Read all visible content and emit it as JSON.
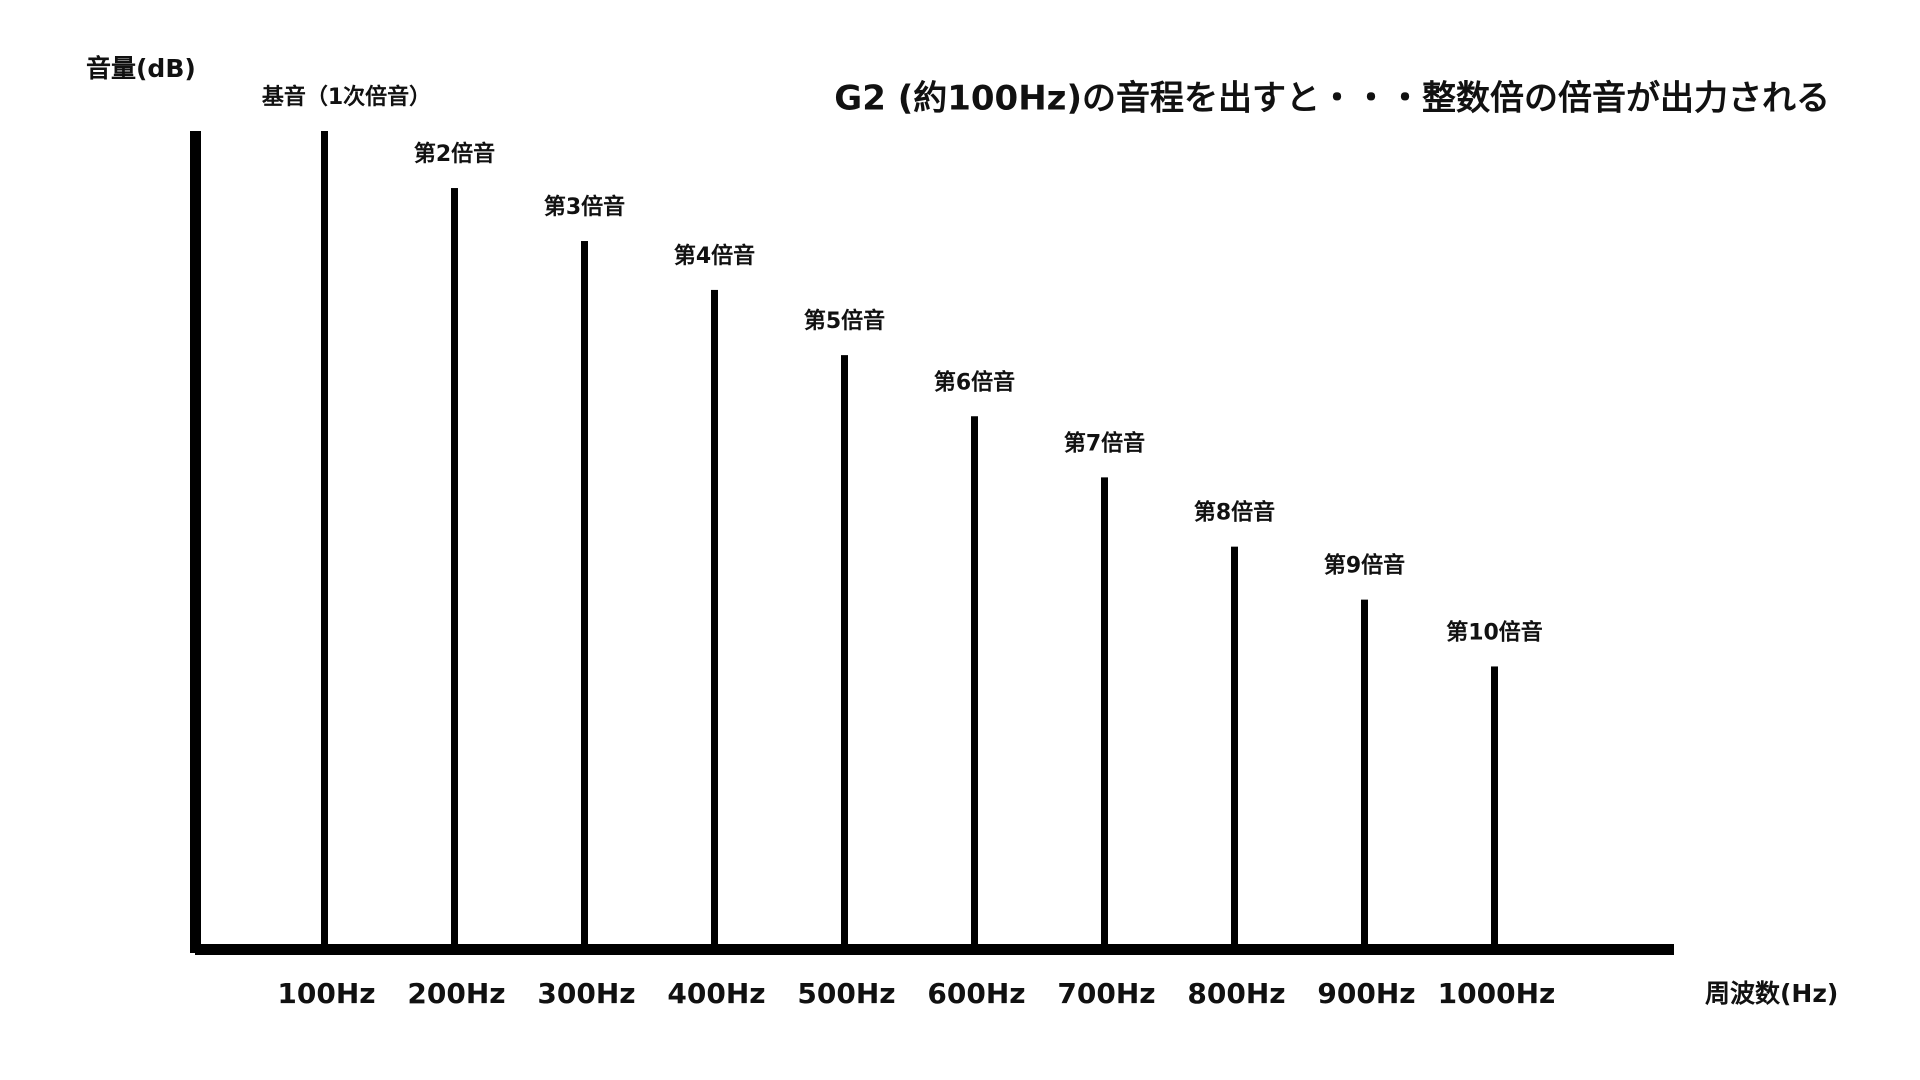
{
  "chart_data": {
    "type": "bar",
    "title": "G2 (約100Hz)の音程を出すと・・・整数倍の倍音が出力される",
    "y_label": "音量(dB)",
    "x_label": "周波数(Hz)",
    "categories": [
      "100Hz",
      "200Hz",
      "300Hz",
      "400Hz",
      "500Hz",
      "600Hz",
      "700Hz",
      "800Hz",
      "900Hz",
      "1000Hz"
    ],
    "bar_labels": [
      "基音（1次倍音）",
      "第2倍音",
      "第3倍音",
      "第4倍音",
      "第5倍音",
      "第6倍音",
      "第7倍音",
      "第8倍音",
      "第9倍音",
      "第10倍音"
    ],
    "values": [
      100,
      93,
      86.5,
      80.5,
      72.5,
      65,
      57.5,
      49,
      42.5,
      34.3
    ],
    "color": "#000000",
    "ylim": [
      0,
      100
    ]
  }
}
